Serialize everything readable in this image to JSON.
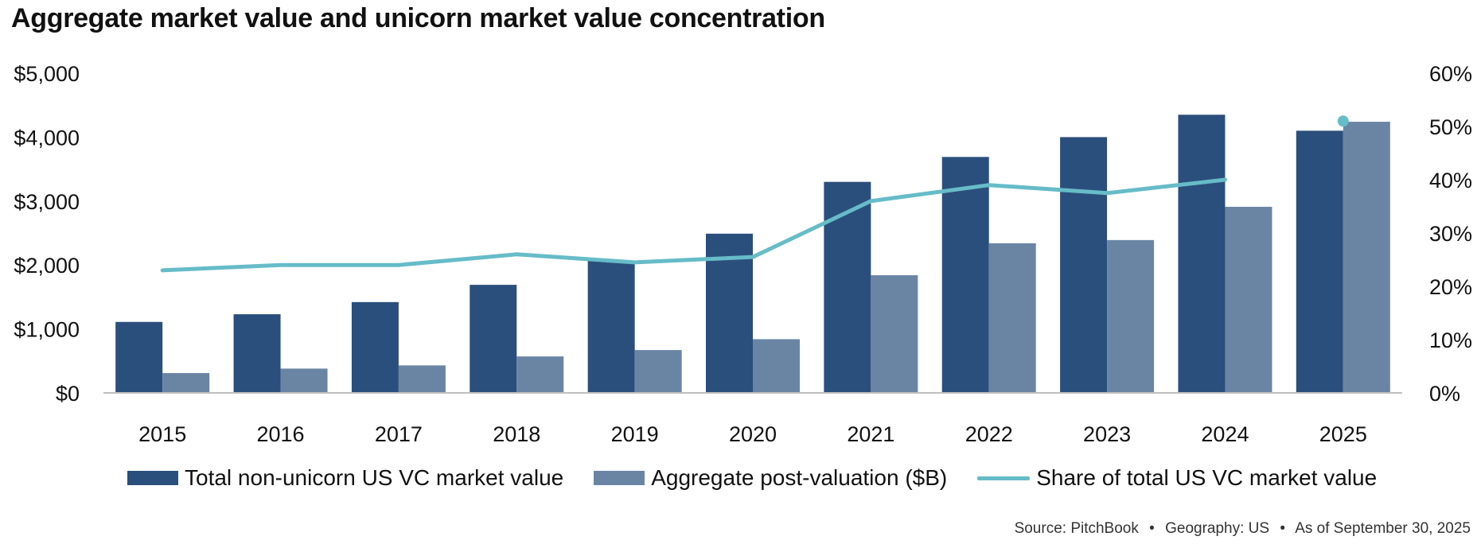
{
  "title": "Aggregate market value and unicorn market value concentration",
  "colors": {
    "non_unicorn": "#2b4f7c",
    "post_valuation": "#6a85a4",
    "share_line": "#66bcc8",
    "axis": "#bfbfbf"
  },
  "chart_data": {
    "type": "bar",
    "title": "Aggregate market value and unicorn market value concentration",
    "categories": [
      "2015",
      "2016",
      "2017",
      "2018",
      "2019",
      "2020",
      "2021",
      "2022",
      "2023",
      "2024",
      "2025"
    ],
    "series": [
      {
        "name": "Total non-unicorn US VC market value",
        "type": "bar",
        "axis": "left",
        "values": [
          1110,
          1230,
          1420,
          1690,
          2070,
          2490,
          3300,
          3690,
          4000,
          4350,
          4100
        ]
      },
      {
        "name": "Aggregate post-valuation ($B)",
        "type": "bar",
        "axis": "left",
        "values": [
          310,
          380,
          430,
          570,
          670,
          840,
          1840,
          2340,
          2390,
          2910,
          4240
        ]
      },
      {
        "name": "Share of total US VC market value",
        "type": "line",
        "axis": "right",
        "values": [
          23,
          24,
          24,
          26,
          24.5,
          25.5,
          36,
          39,
          37.5,
          40,
          51
        ]
      }
    ],
    "y_left": {
      "ylim": [
        0,
        5000
      ],
      "ticks": [
        "$0",
        "$1,000",
        "$2,000",
        "$3,000",
        "$4,000",
        "$5,000"
      ]
    },
    "y_right": {
      "ylim": [
        0,
        60
      ],
      "ticks": [
        "0%",
        "10%",
        "20%",
        "30%",
        "40%",
        "50%",
        "60%"
      ]
    },
    "line_note": "2025 share shown as a single marker (line segment 2024-2025 not drawn)",
    "grid": false,
    "legend_position": "bottom"
  },
  "legend": {
    "items": [
      {
        "label": "Total non-unicorn US VC market value"
      },
      {
        "label": "Aggregate post-valuation ($B)"
      },
      {
        "label": "Share of total US VC market value"
      }
    ]
  },
  "source": {
    "source": "Source: PitchBook",
    "geography": "Geography: US",
    "as_of": "As of September 30, 2025",
    "separator": "•"
  }
}
